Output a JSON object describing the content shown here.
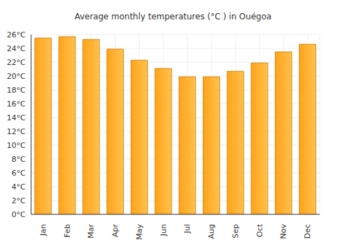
{
  "chart_data": {
    "type": "bar",
    "title": "Average monthly temperatures (°C ) in Ouégoa",
    "categories": [
      "Jan",
      "Feb",
      "Mar",
      "Apr",
      "May",
      "Jun",
      "Jul",
      "Aug",
      "Sep",
      "Oct",
      "Nov",
      "Dec"
    ],
    "values": [
      25.5,
      25.7,
      25.3,
      23.9,
      22.3,
      21.1,
      19.9,
      19.9,
      20.7,
      21.9,
      23.5,
      24.6
    ],
    "color": "#ffa31a",
    "ylim": [
      0,
      26
    ],
    "yticks": [
      {
        "value": 0,
        "label": "0°C"
      },
      {
        "value": 2,
        "label": "2°C"
      },
      {
        "value": 4,
        "label": "4°C"
      },
      {
        "value": 6,
        "label": "6°C"
      },
      {
        "value": 8,
        "label": "8°C"
      },
      {
        "value": 10,
        "label": "10°C"
      },
      {
        "value": 12,
        "label": "12°C"
      },
      {
        "value": 14,
        "label": "14°C"
      },
      {
        "value": 16,
        "label": "16°C"
      },
      {
        "value": 18,
        "label": "18°C"
      },
      {
        "value": 20,
        "label": "20°C"
      },
      {
        "value": 22,
        "label": "22°C"
      },
      {
        "value": 24,
        "label": "24°C"
      },
      {
        "value": 26,
        "label": "26°C"
      }
    ],
    "grid": true
  }
}
